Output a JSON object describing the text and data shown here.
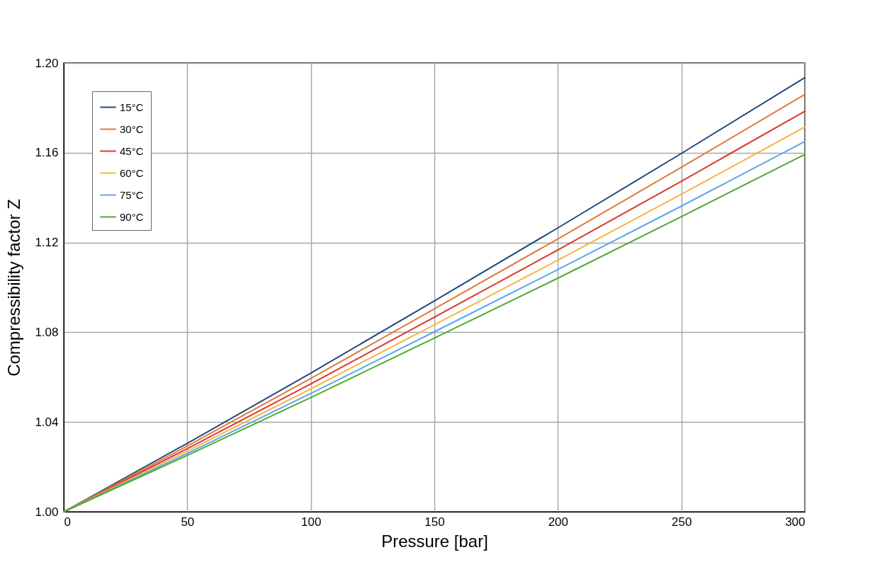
{
  "chart_data": {
    "type": "line",
    "xlabel": "Pressure [bar]",
    "ylabel": "Compressibility factor Z",
    "x": [
      0,
      50,
      100,
      150,
      200,
      250,
      300
    ],
    "xlim": [
      0,
      300
    ],
    "xticks": [
      0,
      50,
      100,
      150,
      200,
      250,
      300
    ],
    "ylim": [
      1.0,
      1.2
    ],
    "yticks": [
      {
        "value": 1.0,
        "label": "1.00"
      },
      {
        "value": 1.04,
        "label": "1.04"
      },
      {
        "value": 1.08,
        "label": "1.08"
      },
      {
        "value": 1.12,
        "label": "1.12"
      },
      {
        "value": 1.16,
        "label": "1.16"
      },
      {
        "value": 1.2,
        "label": "1.20"
      }
    ],
    "grid": true,
    "legend": "top left",
    "marker": "none",
    "line_style": "solid",
    "series": [
      {
        "name": "15°C",
        "color": "#1f4a7a",
        "values": [
          1.0,
          1.0305,
          1.0618,
          1.094,
          1.1265,
          1.1597,
          1.1935
        ]
      },
      {
        "name": "30°C",
        "color": "#e0793a",
        "values": [
          1.0,
          1.0293,
          1.0594,
          1.0904,
          1.1216,
          1.1535,
          1.186
        ]
      },
      {
        "name": "45°C",
        "color": "#d9382b",
        "values": [
          1.0,
          1.0281,
          1.057,
          1.0867,
          1.1167,
          1.1473,
          1.1785
        ]
      },
      {
        "name": "60°C",
        "color": "#f5b342",
        "values": [
          1.0,
          1.027,
          1.0548,
          1.0833,
          1.1121,
          1.1415,
          1.1715
        ]
      },
      {
        "name": "75°C",
        "color": "#5aa7ea",
        "values": [
          1.0,
          1.026,
          1.0527,
          1.0802,
          1.1079,
          1.1362,
          1.165
        ]
      },
      {
        "name": "90°C",
        "color": "#4caa2f",
        "values": [
          1.0,
          1.0251,
          1.0509,
          1.0774,
          1.1041,
          1.1315,
          1.1593
        ]
      }
    ]
  }
}
